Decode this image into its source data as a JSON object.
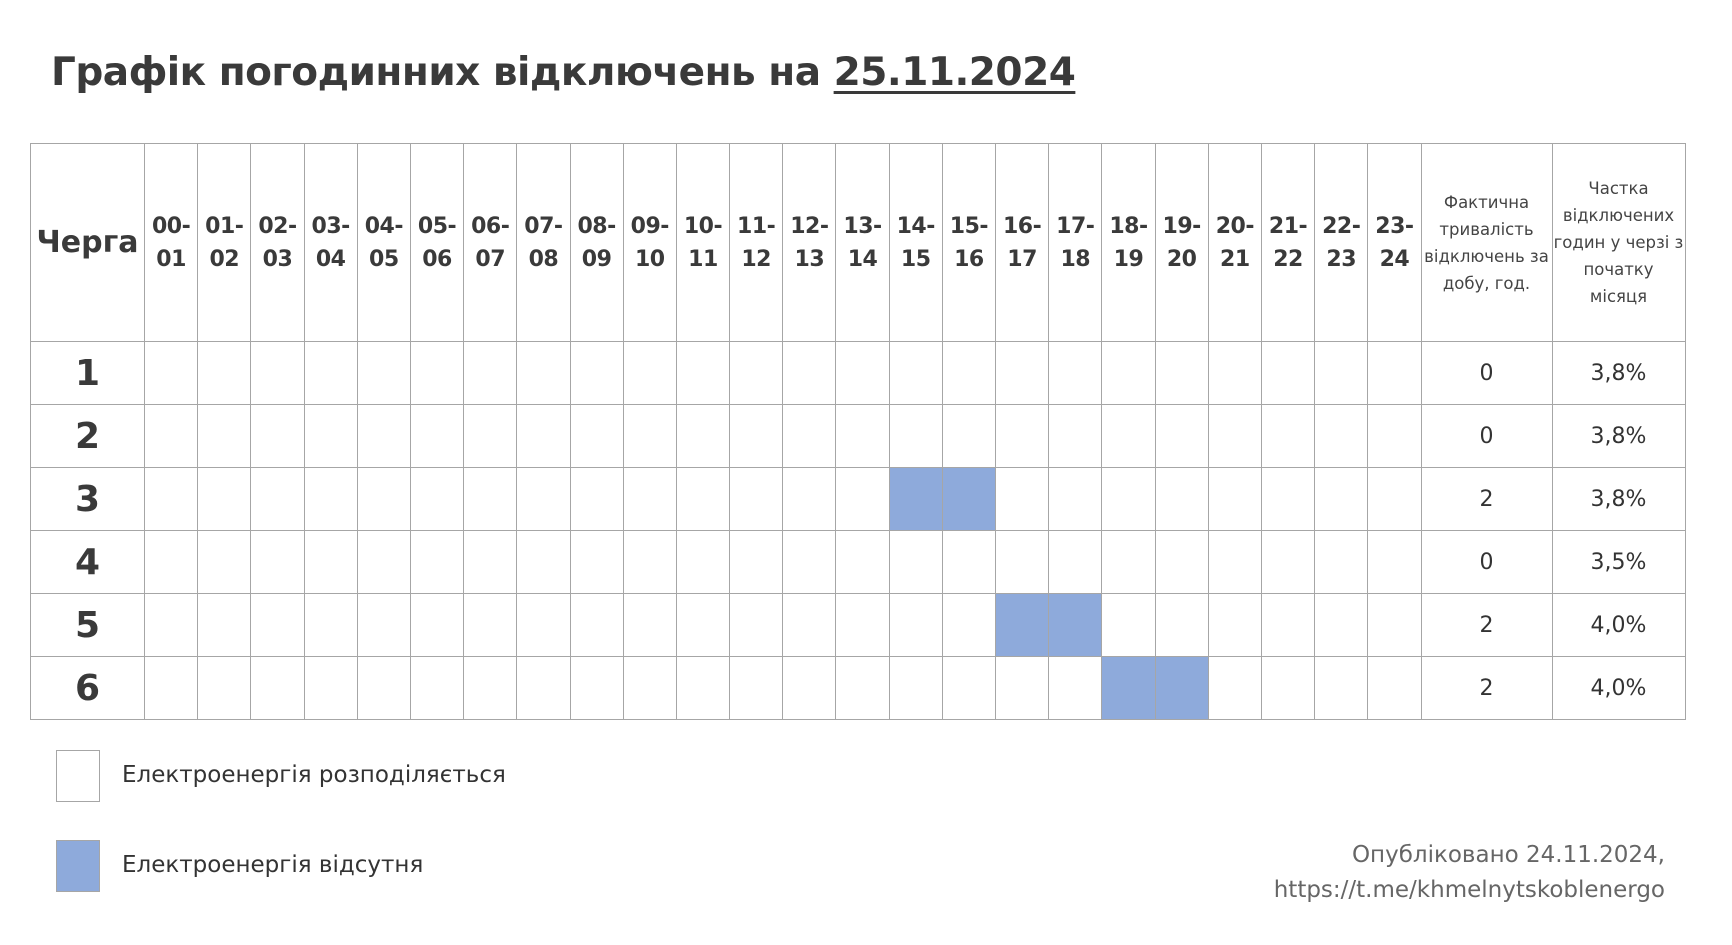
{
  "title": {
    "text": "Графік погодинних відключень на",
    "date": "25.11.2024"
  },
  "table": {
    "queue_header": "Черга",
    "hours": [
      "00-\n01",
      "01-\n02",
      "02-\n03",
      "03-\n04",
      "04-\n05",
      "05-\n06",
      "06-\n07",
      "07-\n08",
      "08-\n09",
      "09-\n10",
      "10-\n11",
      "11-\n12",
      "12-\n13",
      "13-\n14",
      "14-\n15",
      "15-\n16",
      "16-\n17",
      "17-\n18",
      "18-\n19",
      "19-\n20",
      "20-\n21",
      "21-\n22",
      "22-\n23",
      "23-\n24"
    ],
    "duration_header": "Фактична тривалість відключень за добу, год.",
    "share_header": "Частка відключених годин у черзі з початку місяця",
    "rows": [
      {
        "queue": "1",
        "off_hours": [],
        "duration": "0",
        "share": "3,8%"
      },
      {
        "queue": "2",
        "off_hours": [],
        "duration": "0",
        "share": "3,8%"
      },
      {
        "queue": "3",
        "off_hours": [
          14,
          15
        ],
        "duration": "2",
        "share": "3,8%"
      },
      {
        "queue": "4",
        "off_hours": [],
        "duration": "0",
        "share": "3,5%"
      },
      {
        "queue": "5",
        "off_hours": [
          16,
          17
        ],
        "duration": "2",
        "share": "4,0%"
      },
      {
        "queue": "6",
        "off_hours": [
          18,
          19
        ],
        "duration": "2",
        "share": "4,0%"
      }
    ]
  },
  "legend": [
    {
      "label": "Електроенергія розподіляється",
      "color": "#ffffff"
    },
    {
      "label": "Електроенергія відсутня",
      "color": "#8eaadb"
    }
  ],
  "footer": {
    "published": "Опубліковано 24.11.2024,",
    "link": "https://t.me/khmelnytskoblenergo"
  }
}
